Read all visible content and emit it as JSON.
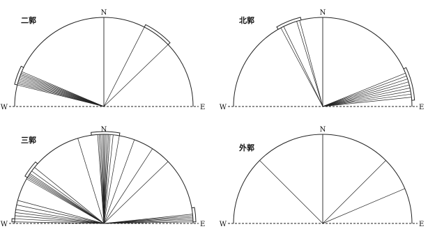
{
  "panels": [
    {
      "id": "erguo",
      "title": "二郭",
      "north": "N",
      "west": "W",
      "east": "E",
      "ray_azimuths_deg": [
        27,
        46,
        284,
        285,
        286,
        287,
        288,
        289,
        290,
        291,
        292,
        293
      ],
      "brackets": [
        [
          27,
          46
        ],
        [
          284,
          296
        ]
      ]
    },
    {
      "id": "beiguo",
      "title": "北郭",
      "north": "N",
      "west": "W",
      "east": "E",
      "ray_azimuths_deg": [
        332,
        334,
        343,
        345,
        68,
        70,
        72,
        74,
        76,
        78,
        80,
        82,
        84
      ],
      "brackets": [
        [
          330,
          346
        ],
        [
          65,
          86
        ]
      ]
    },
    {
      "id": "sanguo",
      "title": "三郭",
      "north": "N",
      "west": "W",
      "east": "E",
      "ray_azimuths_deg": [
        343,
        356,
        357,
        358,
        359,
        0,
        1,
        2,
        3,
        4,
        6,
        10,
        20,
        33,
        46,
        300,
        301,
        302,
        303,
        304,
        306,
        309,
        271,
        273,
        275,
        277,
        279,
        282,
        285,
        84,
        85,
        86,
        87,
        88,
        89
      ],
      "brackets": [
        [
          352,
          10
        ],
        [
          301,
          312
        ],
        [
          80,
          89
        ],
        [
          271,
          273
        ]
      ]
    },
    {
      "id": "waiguo",
      "title": "外郭",
      "north": "N",
      "west": "W",
      "east": "E",
      "ray_azimuths_deg": [
        315,
        45,
        67
      ],
      "brackets": []
    }
  ]
}
